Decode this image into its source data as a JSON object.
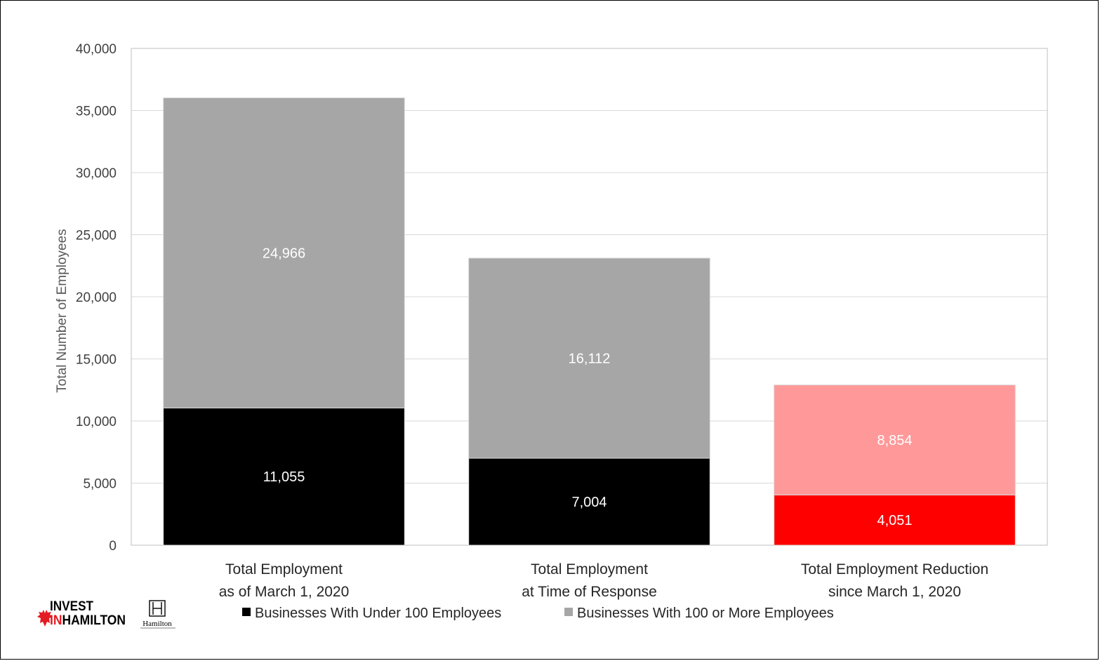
{
  "chart_data": {
    "type": "bar",
    "stacked": true,
    "title": "",
    "xlabel": "",
    "ylabel": "Total Number of Employees",
    "ylim": [
      0,
      40000
    ],
    "yticks": [
      0,
      5000,
      10000,
      15000,
      20000,
      25000,
      30000,
      35000,
      40000
    ],
    "ytick_labels": [
      "0",
      "5,000",
      "10,000",
      "15,000",
      "20,000",
      "25,000",
      "30,000",
      "35,000",
      "40,000"
    ],
    "grid": true,
    "legend_position": "bottom",
    "categories": [
      [
        "Total Employment",
        "as of March 1, 2020"
      ],
      [
        "Total Employment",
        "at Time of Response"
      ],
      [
        "Total Employment Reduction",
        "since March 1, 2020"
      ]
    ],
    "series": [
      {
        "name": "Businesses With Under 100 Employees",
        "values": [
          11055,
          7004,
          4051
        ],
        "value_labels": [
          "11,055",
          "7,004",
          "4,051"
        ],
        "color": "#000000",
        "point_colors": [
          "#000000",
          "#000000",
          "#ff0000"
        ]
      },
      {
        "name": "Businesses With 100 or More Employees",
        "values": [
          24966,
          16112,
          8854
        ],
        "value_labels": [
          "24,966",
          "16,112",
          "8,854"
        ],
        "color": "#a6a6a6",
        "point_colors": [
          "#a6a6a6",
          "#a6a6a6",
          "#ff9999"
        ]
      }
    ]
  },
  "logos": {
    "invest_line1": "INVEST",
    "invest_line2_red": "IN",
    "invest_line2_black": "HAMILTON",
    "city_name": "Hamilton"
  }
}
